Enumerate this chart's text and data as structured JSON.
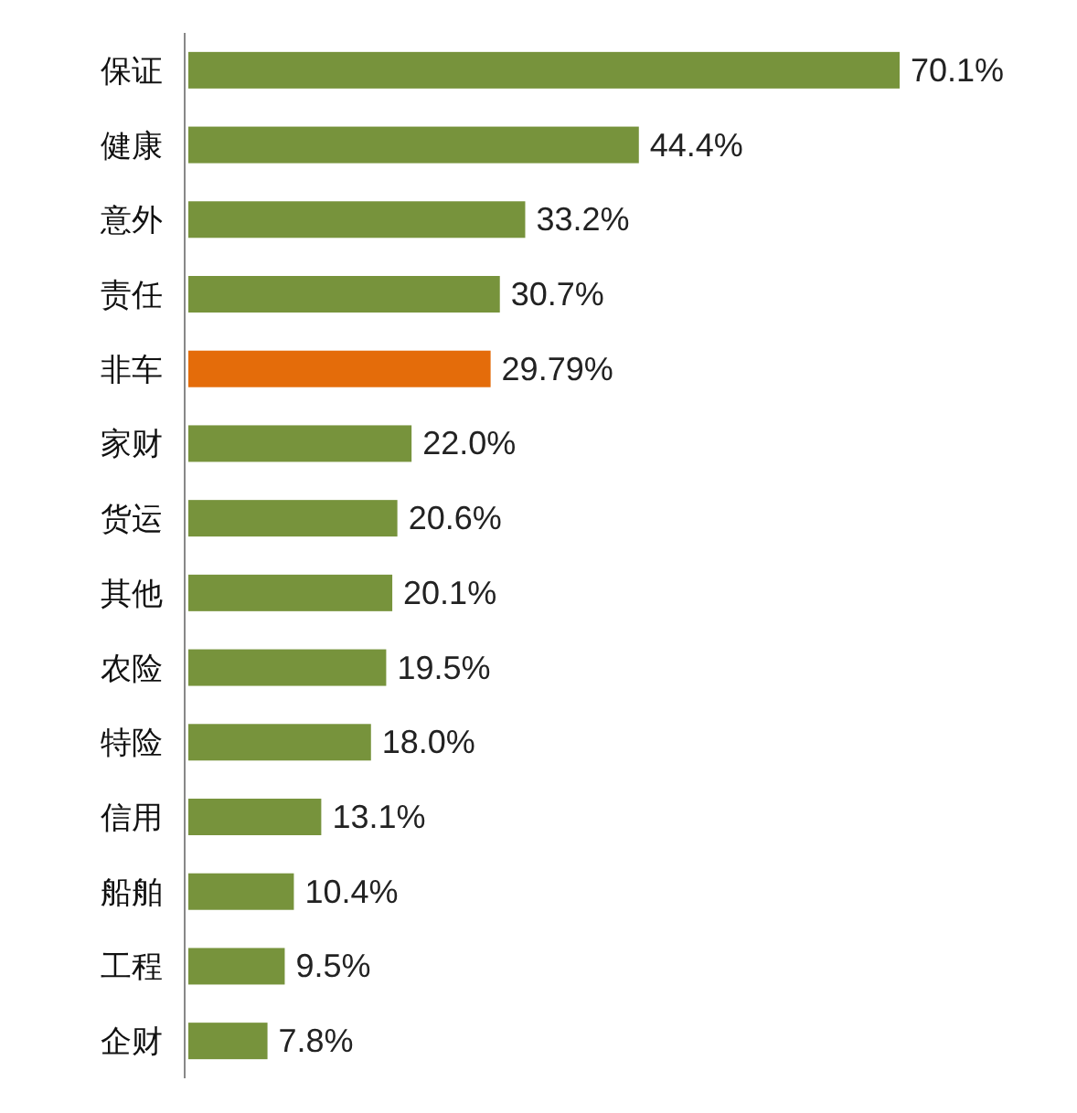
{
  "chart_data": {
    "type": "bar",
    "orientation": "horizontal",
    "categories": [
      "保证",
      "健康",
      "意外",
      "责任",
      "非车",
      "家财",
      "货运",
      "其他",
      "农险",
      "特险",
      "信用",
      "船舶",
      "工程",
      "企财"
    ],
    "values": [
      70.1,
      44.4,
      33.2,
      30.7,
      29.79,
      22.0,
      20.6,
      20.1,
      19.5,
      18.0,
      13.1,
      10.4,
      9.5,
      7.8
    ],
    "value_labels": [
      "70.1%",
      "44.4%",
      "33.2%",
      "30.7%",
      "29.79%",
      "22.0%",
      "20.6%",
      "20.1%",
      "19.5%",
      "18.0%",
      "13.1%",
      "10.4%",
      "9.5%",
      "7.8%"
    ],
    "colors": [
      "#77933c",
      "#77933c",
      "#77933c",
      "#77933c",
      "#e46c0a",
      "#77933c",
      "#77933c",
      "#77933c",
      "#77933c",
      "#77933c",
      "#77933c",
      "#77933c",
      "#77933c",
      "#77933c"
    ]
  }
}
